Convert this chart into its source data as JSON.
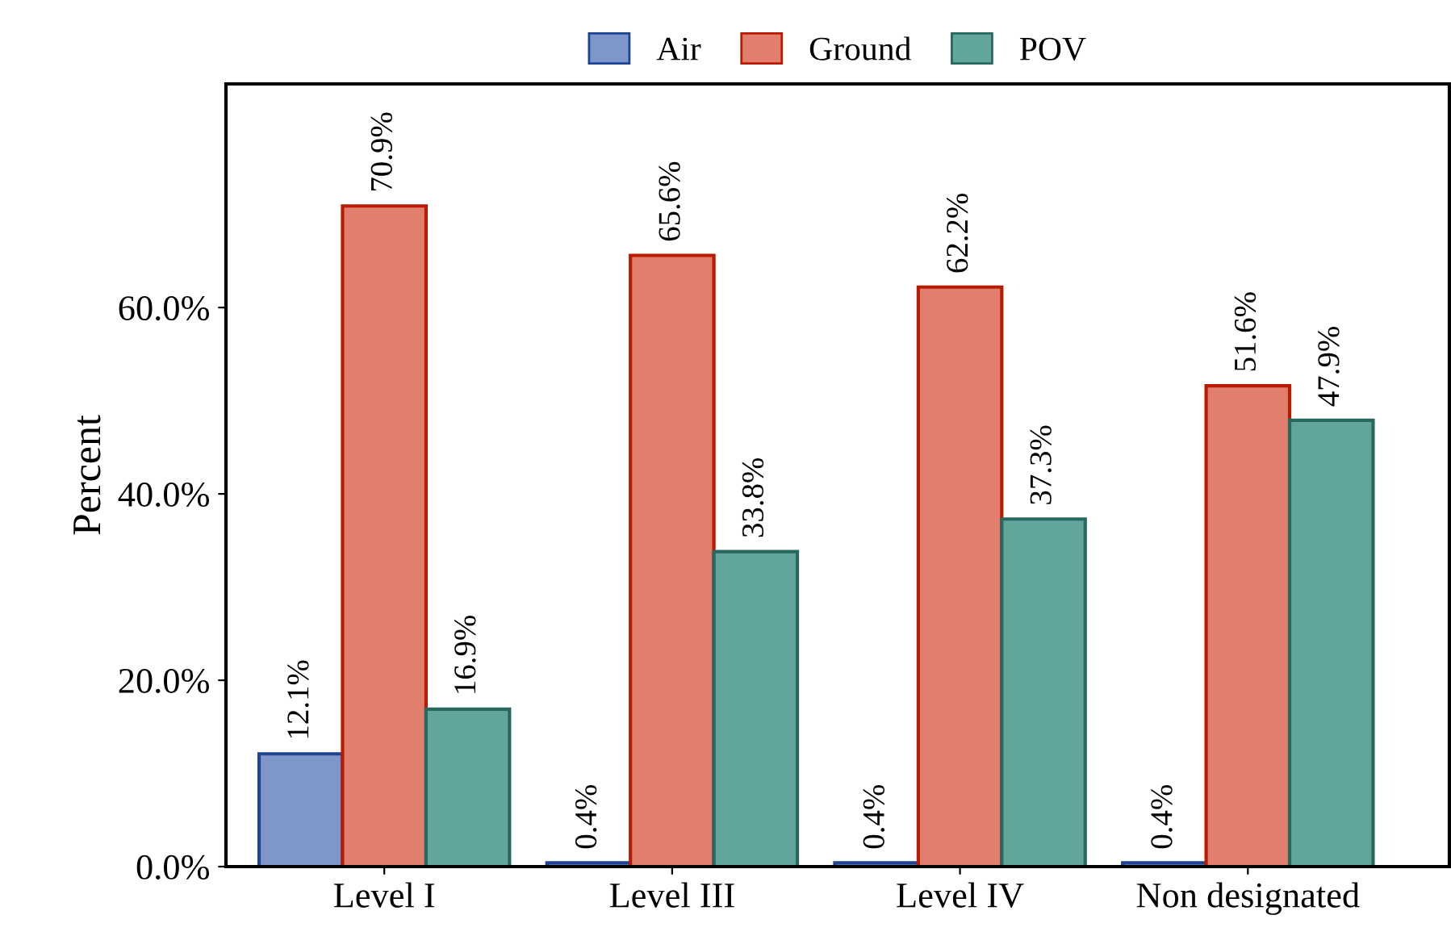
{
  "chart_data": {
    "type": "bar",
    "ylabel": "Percent",
    "categories": [
      "Level I",
      "Level III",
      "Level IV",
      "Non designated"
    ],
    "series": [
      {
        "name": "Air",
        "color": "#7f96c9",
        "values": [
          12.1,
          0.4,
          0.4,
          0.4
        ],
        "value_labels": [
          "12.1%",
          "0.4%",
          "0.4%",
          "0.4%"
        ]
      },
      {
        "name": "Ground",
        "color": "#e07f6e",
        "values": [
          70.9,
          65.6,
          62.2,
          51.6
        ],
        "value_labels": [
          "70.9%",
          "65.6%",
          "62.2%",
          "51.6%"
        ]
      },
      {
        "name": "POV",
        "color": "#62a59c",
        "values": [
          16.9,
          33.8,
          37.3,
          47.9
        ],
        "value_labels": [
          "16.9%",
          "33.8%",
          "37.3%",
          "47.9%"
        ]
      }
    ],
    "ylim": [
      0,
      84
    ],
    "yticks": [
      {
        "value": 0,
        "label": "0.0%"
      },
      {
        "value": 20,
        "label": "20.0%"
      },
      {
        "value": 40,
        "label": "40.0%"
      },
      {
        "value": 60,
        "label": "60.0%"
      }
    ],
    "grid": false,
    "legend": "top"
  }
}
